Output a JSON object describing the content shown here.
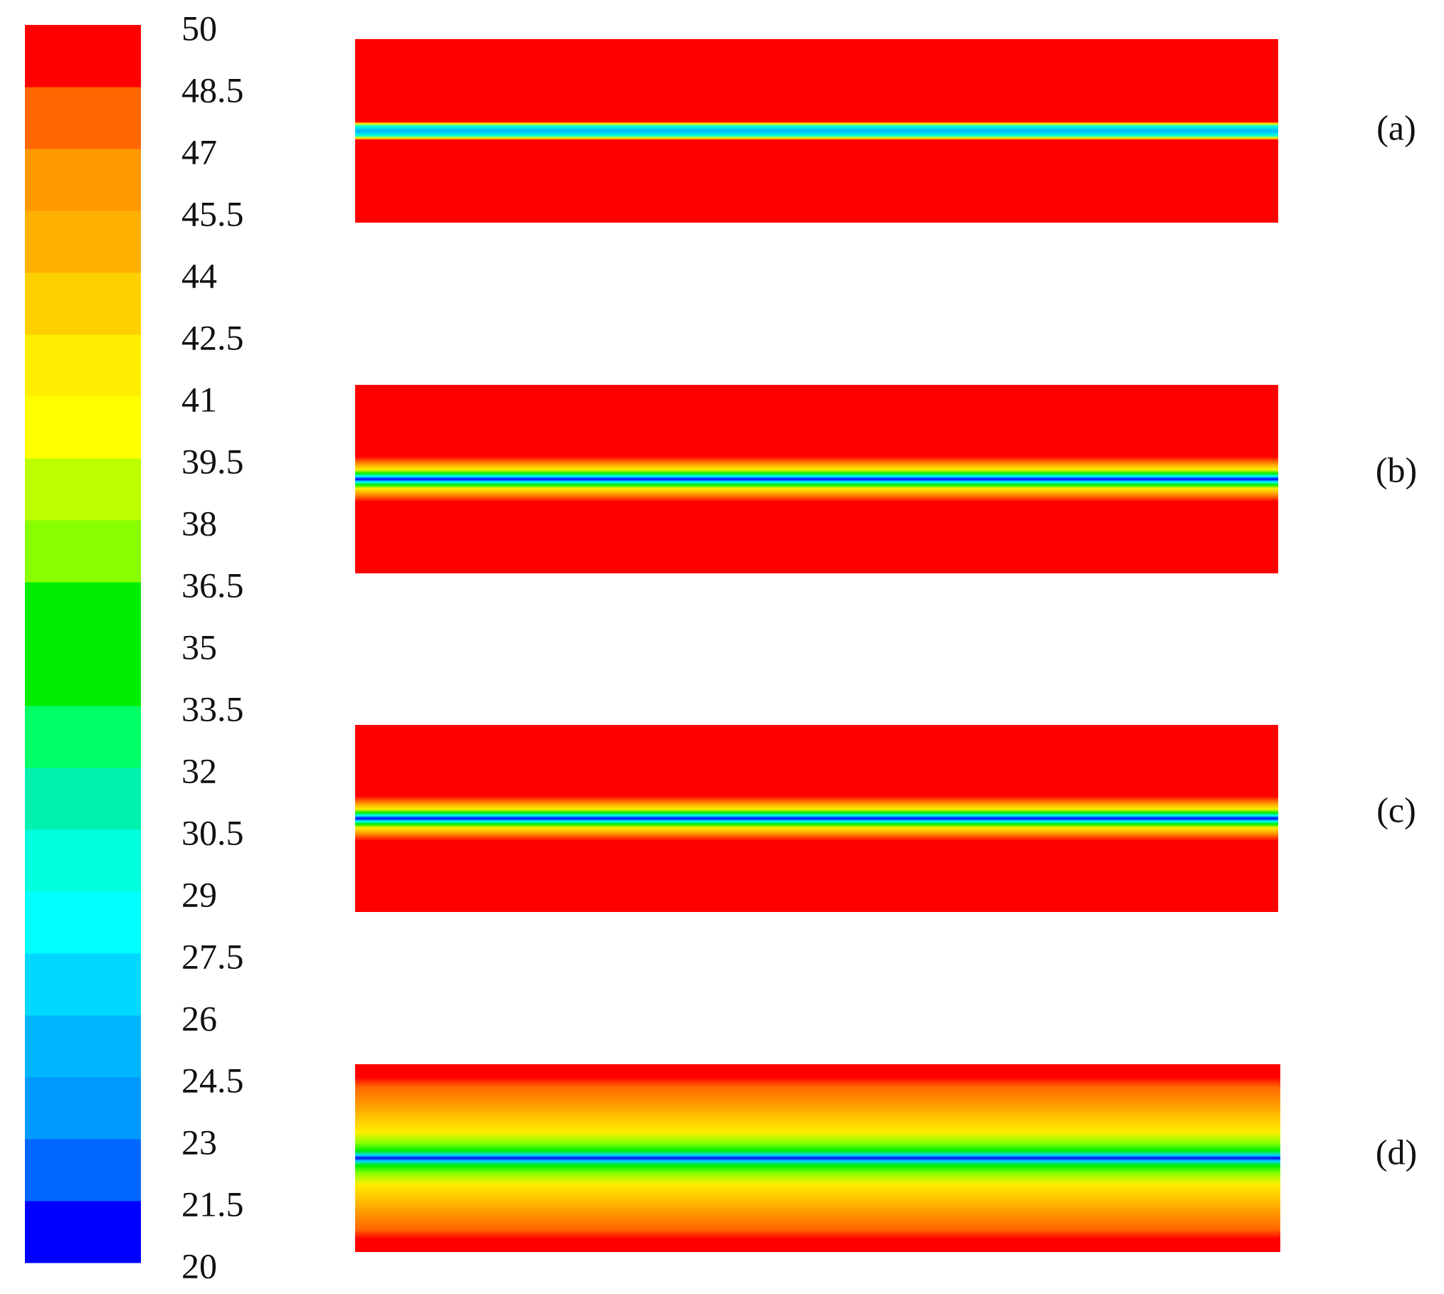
{
  "chart_data": {
    "type": "contour",
    "colorbar": {
      "ylim": [
        20,
        50
      ],
      "yticks": [
        20,
        21.5,
        23,
        24.5,
        26,
        27.5,
        29,
        30.5,
        32,
        33.5,
        35,
        36.5,
        38,
        39.5,
        41,
        42.5,
        44,
        45.5,
        47,
        48.5,
        50
      ],
      "colors": [
        "#0000ff",
        "#0066ff",
        "#0099ff",
        "#00b4ff",
        "#00d8ff",
        "#00ffff",
        "#00ffdd",
        "#00f0b0",
        "#00ff66",
        "#00ee00",
        "#00ee00",
        "#88ff00",
        "#bbff00",
        "#ffff00",
        "#ffee00",
        "#ffd000",
        "#ffb000",
        "#ff9900",
        "#ff6600",
        "#ff0000"
      ]
    },
    "panels": [
      {
        "label": "(a)"
      },
      {
        "label": "(b)"
      },
      {
        "label": "(c)"
      },
      {
        "label": "(d)"
      }
    ]
  }
}
